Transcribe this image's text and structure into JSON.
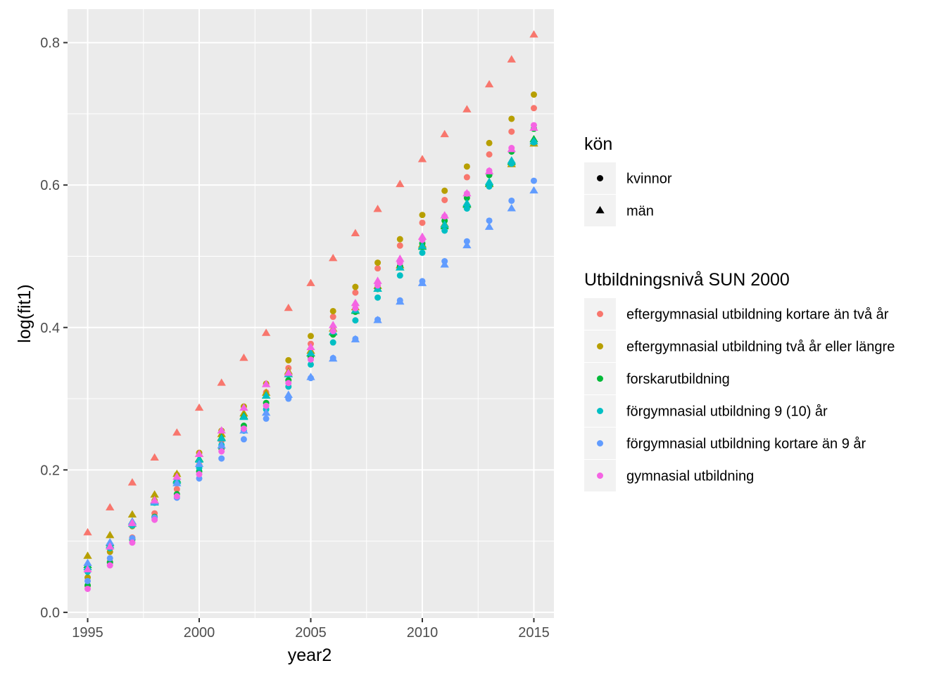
{
  "chart_data": {
    "type": "scatter",
    "xlabel": "year2",
    "ylabel": "log(fit1)",
    "xlim": [
      1994.1,
      2015.9
    ],
    "ylim": [
      -0.008,
      0.847
    ],
    "x_ticks": [
      1995,
      2000,
      2005,
      2010,
      2015
    ],
    "x_tick_labels": [
      "1995",
      "2000",
      "2005",
      "2010",
      "2015"
    ],
    "y_ticks": [
      0.0,
      0.2,
      0.4,
      0.6,
      0.8
    ],
    "y_tick_labels": [
      "0.0",
      "0.2",
      "0.4",
      "0.6",
      "0.8"
    ],
    "grid": true,
    "legend_position": "right",
    "shape_legend": {
      "title": "kön",
      "entries": [
        {
          "label": "kvinnor",
          "shape": "circle"
        },
        {
          "label": "män",
          "shape": "triangle"
        }
      ]
    },
    "color_legend": {
      "title": "Utbildningsnivå SUN 2000",
      "entries": [
        {
          "label": "eftergymnasial utbildning kortare än två år",
          "color": "#F8766D"
        },
        {
          "label": "eftergymnasial utbildning två år eller längre",
          "color": "#B79F00"
        },
        {
          "label": "forskarutbildning",
          "color": "#00BA38"
        },
        {
          "label": "förgymnasial utbildning 9 (10) år",
          "color": "#00BFC4"
        },
        {
          "label": "förgymnasial utbildning kortare än 9 år",
          "color": "#619CFF"
        },
        {
          "label": "gymnasial utbildning",
          "color": "#F564E3"
        }
      ]
    },
    "x": [
      1995,
      1996,
      1997,
      1998,
      1999,
      2000,
      2001,
      2002,
      2003,
      2004,
      2005,
      2006,
      2007,
      2008,
      2009,
      2010,
      2011,
      2012,
      2013,
      2014,
      2015
    ],
    "series": [
      {
        "level": 0,
        "sex": "kvinnor",
        "values": [
          0.037,
          0.071,
          0.105,
          0.139,
          0.173,
          0.207,
          0.241,
          0.275,
          0.309,
          0.343,
          0.377,
          0.415,
          0.449,
          0.483,
          0.515,
          0.547,
          0.579,
          0.611,
          0.643,
          0.675,
          0.708
        ]
      },
      {
        "level": 0,
        "sex": "män",
        "values": [
          0.112,
          0.147,
          0.182,
          0.217,
          0.252,
          0.287,
          0.322,
          0.357,
          0.392,
          0.427,
          0.462,
          0.497,
          0.532,
          0.566,
          0.601,
          0.636,
          0.671,
          0.706,
          0.741,
          0.776,
          0.811
        ]
      },
      {
        "level": 1,
        "sex": "kvinnor",
        "values": [
          0.049,
          0.085,
          0.121,
          0.157,
          0.193,
          0.224,
          0.255,
          0.289,
          0.321,
          0.354,
          0.388,
          0.423,
          0.457,
          0.491,
          0.524,
          0.558,
          0.592,
          0.626,
          0.659,
          0.693,
          0.727
        ]
      },
      {
        "level": 1,
        "sex": "män",
        "values": [
          0.079,
          0.108,
          0.137,
          0.165,
          0.194,
          0.222,
          0.25,
          0.279,
          0.308,
          0.338,
          0.367,
          0.398,
          0.428,
          0.458,
          0.487,
          0.516,
          0.545,
          0.573,
          0.601,
          0.629,
          0.658
        ]
      },
      {
        "level": 2,
        "sex": "kvinnor",
        "values": [
          0.038,
          0.07,
          0.102,
          0.134,
          0.166,
          0.198,
          0.23,
          0.262,
          0.294,
          0.326,
          0.358,
          0.39,
          0.422,
          0.454,
          0.486,
          0.518,
          0.55,
          0.582,
          0.614,
          0.647,
          0.679
        ]
      },
      {
        "level": 2,
        "sex": "män",
        "values": [
          0.066,
          0.097,
          0.127,
          0.156,
          0.186,
          0.215,
          0.245,
          0.275,
          0.304,
          0.334,
          0.363,
          0.393,
          0.423,
          0.454,
          0.484,
          0.513,
          0.542,
          0.572,
          0.602,
          0.632,
          0.664
        ]
      },
      {
        "level": 3,
        "sex": "kvinnor",
        "values": [
          0.057,
          0.09,
          0.122,
          0.154,
          0.186,
          0.203,
          0.235,
          0.255,
          0.285,
          0.317,
          0.348,
          0.379,
          0.41,
          0.442,
          0.473,
          0.505,
          0.536,
          0.567,
          0.598,
          0.63,
          0.66
        ]
      },
      {
        "level": 3,
        "sex": "män",
        "values": [
          0.063,
          0.094,
          0.124,
          0.154,
          0.184,
          0.214,
          0.244,
          0.274,
          0.304,
          0.334,
          0.364,
          0.394,
          0.424,
          0.454,
          0.484,
          0.514,
          0.544,
          0.574,
          0.604,
          0.634,
          0.661
        ]
      },
      {
        "level": 4,
        "sex": "kvinnor",
        "values": [
          0.044,
          0.076,
          0.104,
          0.133,
          0.161,
          0.188,
          0.216,
          0.243,
          0.272,
          0.3,
          0.329,
          0.357,
          0.384,
          0.411,
          0.438,
          0.465,
          0.493,
          0.521,
          0.55,
          0.578,
          0.606
        ]
      },
      {
        "level": 4,
        "sex": "män",
        "values": [
          0.069,
          0.098,
          0.127,
          0.155,
          0.181,
          0.208,
          0.234,
          0.255,
          0.28,
          0.305,
          0.33,
          0.356,
          0.383,
          0.41,
          0.436,
          0.462,
          0.488,
          0.515,
          0.541,
          0.567,
          0.592
        ]
      },
      {
        "level": 5,
        "sex": "kvinnor",
        "values": [
          0.033,
          0.066,
          0.098,
          0.13,
          0.163,
          0.194,
          0.226,
          0.258,
          0.29,
          0.322,
          0.355,
          0.395,
          0.427,
          0.459,
          0.491,
          0.523,
          0.556,
          0.588,
          0.62,
          0.652,
          0.684
        ]
      },
      {
        "level": 5,
        "sex": "män",
        "values": [
          0.06,
          0.092,
          0.125,
          0.157,
          0.19,
          0.222,
          0.255,
          0.287,
          0.32,
          0.336,
          0.372,
          0.403,
          0.434,
          0.465,
          0.496,
          0.527,
          0.557,
          0.588,
          0.619,
          0.65,
          0.68
        ]
      }
    ]
  }
}
